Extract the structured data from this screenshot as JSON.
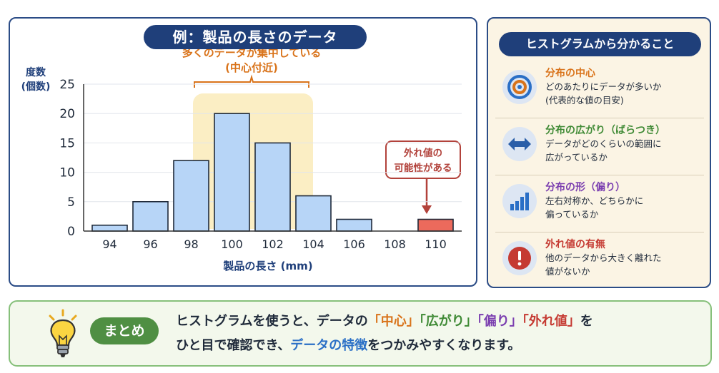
{
  "chart_title": "例：製品の長さのデータ",
  "chart_data": {
    "type": "bar",
    "categories": [
      "94",
      "96",
      "98",
      "100",
      "102",
      "104",
      "106",
      "108",
      "110"
    ],
    "values": [
      1,
      5,
      12,
      20,
      15,
      6,
      2,
      0,
      2
    ],
    "ylabel_line1": "度数",
    "ylabel_line2": "(個数)",
    "xlabel": "製品の長さ (mm)",
    "ylim": [
      0,
      25
    ],
    "yticks": [
      "0",
      "5",
      "10",
      "15",
      "20",
      "25"
    ],
    "grid": true,
    "bar_color": "#b7d5f7",
    "outlier_color": "#ec6a5c",
    "highlight_color": "#fbeec4",
    "annotation_center_line1": "多くのデータが集中している",
    "annotation_center_line2": "(中心付近)",
    "annotation_outlier_line1": "外れ値の",
    "annotation_outlier_line2": "可能性がある"
  },
  "info_panel": {
    "title": "ヒストグラムから分かること",
    "items": [
      {
        "icon": "target-icon",
        "heading": "分布の中心",
        "color": "#d9731a",
        "line1": "どのあたりにデータが多いか",
        "line2": "(代表的な値の目安)"
      },
      {
        "icon": "double-arrow-icon",
        "heading": "分布の広がり（ばらつき）",
        "color": "#3f8a35",
        "line1": "データがどのくらいの範囲に",
        "line2": "広がっているか"
      },
      {
        "icon": "bar-chart-icon",
        "heading": "分布の形（偏り）",
        "color": "#7b3fb0",
        "line1": "左右対称か、どちらかに",
        "line2": "偏っているか"
      },
      {
        "icon": "exclamation-icon",
        "heading": "外れ値の有無",
        "color": "#c53a32",
        "line1": "他のデータから大きく離れた",
        "line2": "値がないか"
      }
    ]
  },
  "summary": {
    "badge": "まとめ",
    "line1_pre": "ヒストグラムを使うと、データの",
    "kw_center": "「中心」",
    "kw_spread": "「広がり」",
    "kw_skew": "「偏り」",
    "kw_outlier": "「外れ値」",
    "line1_post": "を",
    "line2_pre": "ひと目で確認でき、",
    "kw_feature": "データの特徴",
    "line2_post": "をつかみやすくなります。"
  }
}
